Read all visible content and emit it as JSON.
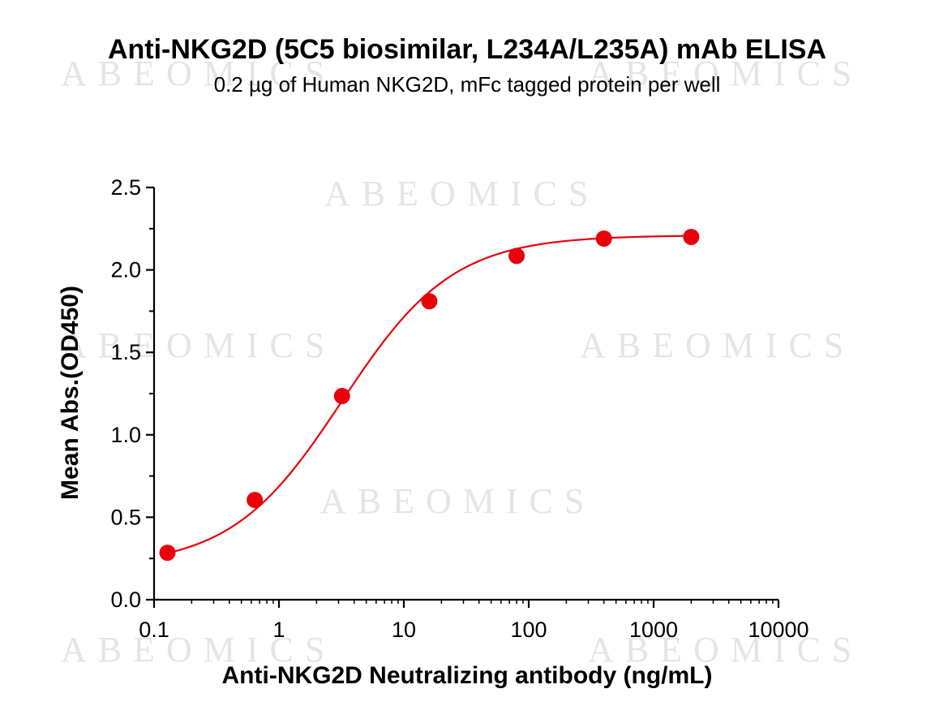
{
  "watermark": "ABEOMICS",
  "chart_data": {
    "type": "scatter",
    "title": "Anti-NKG2D (5C5 biosimilar, L234A/L235A) mAb ELISA",
    "subtitle": "0.2 µg of Human NKG2D, mFc tagged protein per well",
    "xlabel": "Anti-NKG2D Neutralizing antibody (ng/mL)",
    "ylabel": "Mean Abs.(OD450)",
    "xscale": "log",
    "xlim": [
      0.1,
      10000
    ],
    "ylim": [
      0,
      2.5
    ],
    "x_ticks": [
      0.1,
      1,
      10,
      100,
      1000,
      10000
    ],
    "x_tick_labels": [
      "0.1",
      "1",
      "10",
      "100",
      "1000",
      "10000"
    ],
    "y_ticks": [
      0,
      0.5,
      1.0,
      1.5,
      2.0,
      2.5
    ],
    "y_tick_labels": [
      "0.0",
      "0.5",
      "1.0",
      "1.5",
      "2.0",
      "2.5"
    ],
    "grid": false,
    "colors": {
      "series": "#e8000b",
      "axis": "#000000"
    },
    "series": [
      {
        "x": [
          0.128,
          0.64,
          3.2,
          16,
          80,
          400,
          2000
        ],
        "y": [
          0.285,
          0.605,
          1.235,
          1.81,
          2.085,
          2.19,
          2.2
        ],
        "fit": "four-parameter logistic curve"
      }
    ]
  }
}
